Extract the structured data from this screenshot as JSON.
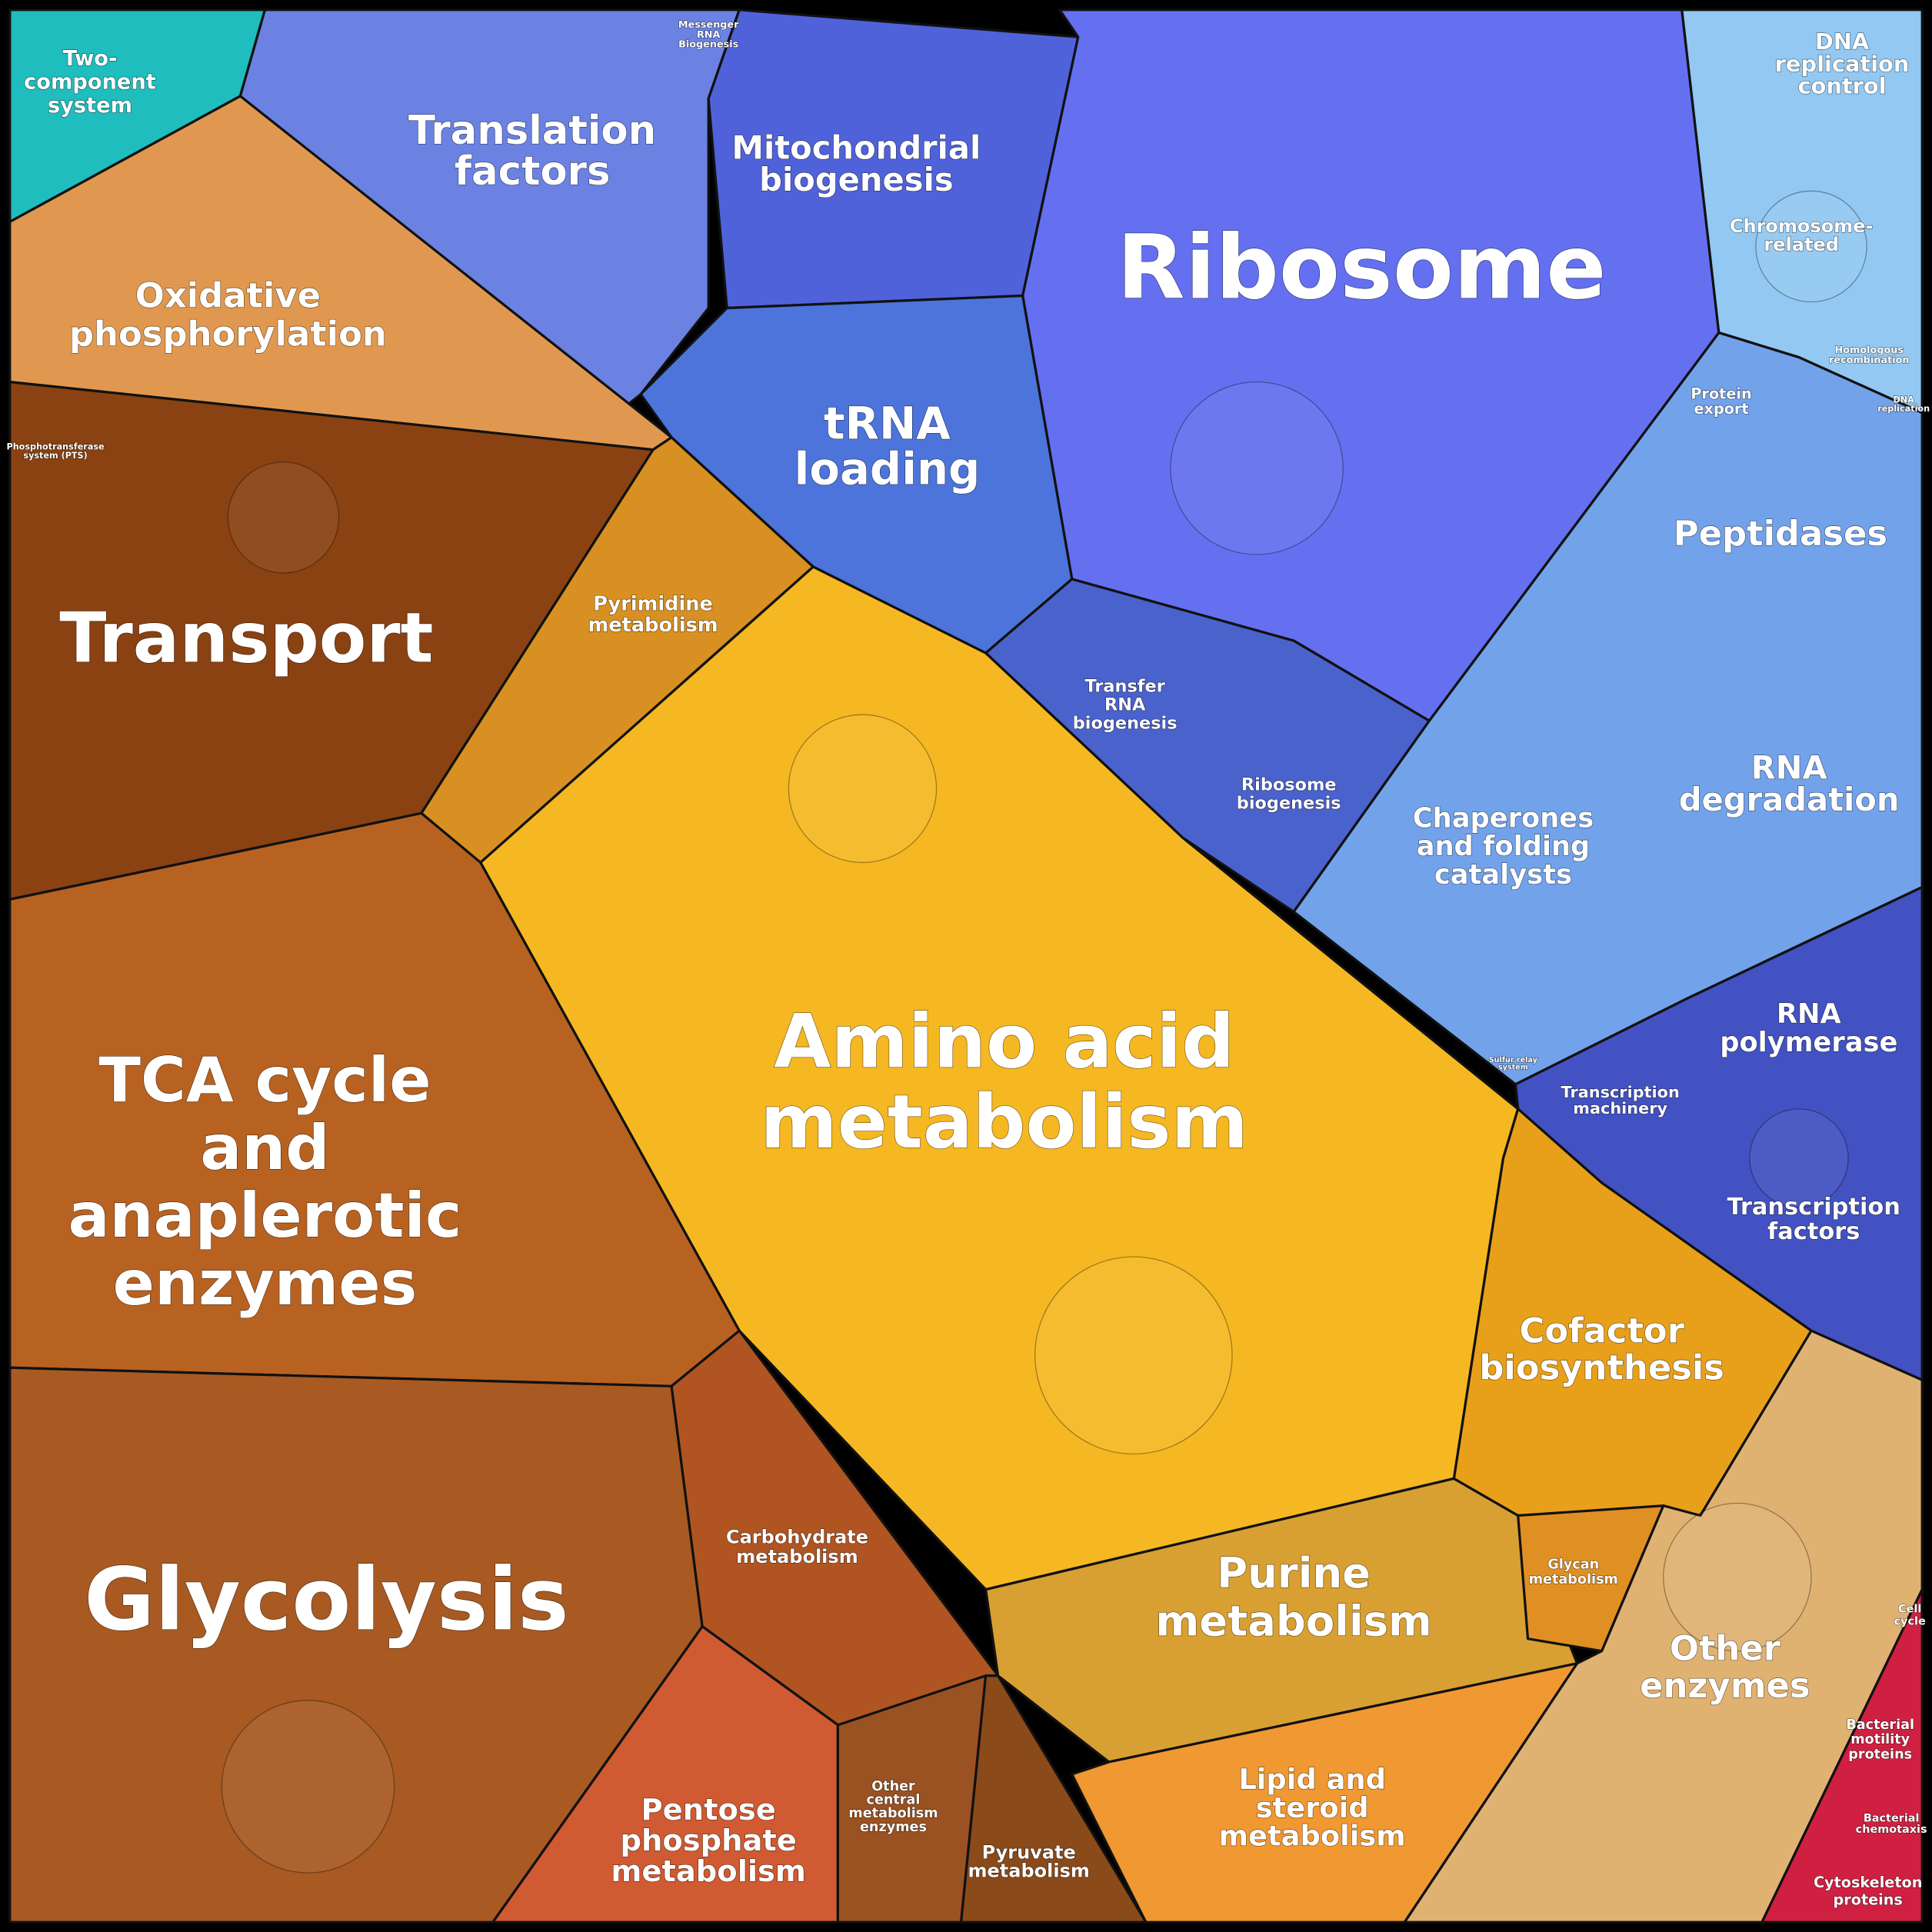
{
  "nodes": [
    {
      "label": [
        "Two-",
        "component",
        "system"
      ]
    },
    {
      "label": [
        "Translation",
        "factors"
      ]
    },
    {
      "label": [
        "Messenger",
        "RNA",
        "Biogenesis"
      ]
    },
    {
      "label": [
        "Mitochondrial",
        "biogenesis"
      ]
    },
    {
      "label": [
        "Ribosome"
      ]
    },
    {
      "label": [
        "DNA",
        "replication",
        "control"
      ]
    },
    {
      "label": [
        "Chromosome-",
        "related"
      ]
    },
    {
      "label": [
        "Homologous",
        "recombination"
      ]
    },
    {
      "label": [
        "DNA",
        "replication"
      ]
    },
    {
      "label": [
        "Protein",
        "export"
      ]
    },
    {
      "label": [
        "tRNA",
        "loading"
      ]
    },
    {
      "label": [
        "Peptidases"
      ]
    },
    {
      "label": [
        "Oxidative",
        "phosphorylation"
      ]
    },
    {
      "label": [
        "Phosphotransferase",
        "system (PTS)"
      ]
    },
    {
      "label": [
        "Transport"
      ]
    },
    {
      "label": [
        "Pyrimidine",
        "metabolism"
      ]
    },
    {
      "label": [
        "Transfer",
        "RNA",
        "biogenesis"
      ]
    },
    {
      "label": [
        "Ribosome",
        "biogenesis"
      ]
    },
    {
      "label": [
        "Chaperones",
        "and folding",
        "catalysts"
      ]
    },
    {
      "label": [
        "RNA",
        "degradation"
      ]
    },
    {
      "label": [
        "Amino acid",
        "metabolism"
      ]
    },
    {
      "label": [
        "TCA cycle",
        "and",
        "anaplerotic",
        "enzymes"
      ]
    },
    {
      "label": [
        "RNA",
        "polymerase"
      ]
    },
    {
      "label": [
        "Transcription",
        "machinery"
      ]
    },
    {
      "label": [
        "Sulfur relay",
        "system"
      ]
    },
    {
      "label": [
        "Transcription",
        "factors"
      ]
    },
    {
      "label": [
        "Cofactor",
        "biosynthesis"
      ]
    },
    {
      "label": [
        "Glycolysis"
      ]
    },
    {
      "label": [
        "Carbohydrate",
        "metabolism"
      ]
    },
    {
      "label": [
        "Purine",
        "metabolism"
      ]
    },
    {
      "label": [
        "Glycan",
        "metabolism"
      ]
    },
    {
      "label": [
        "Other",
        "enzymes"
      ]
    },
    {
      "label": [
        "Cell",
        "cycle"
      ]
    },
    {
      "label": [
        "Bacterial",
        "motility",
        "proteins"
      ]
    },
    {
      "label": [
        "Bacterial",
        "chemotaxis"
      ]
    },
    {
      "label": [
        "Cytoskeleton",
        "proteins"
      ]
    },
    {
      "label": [
        "Lipid and",
        "steroid",
        "metabolism"
      ]
    },
    {
      "label": [
        "Pentose",
        "phosphate",
        "metabolism"
      ]
    },
    {
      "label": [
        "Other",
        "central",
        "metabolism",
        "enzymes"
      ]
    },
    {
      "label": [
        "Pyruvate",
        "metabolism"
      ]
    }
  ]
}
